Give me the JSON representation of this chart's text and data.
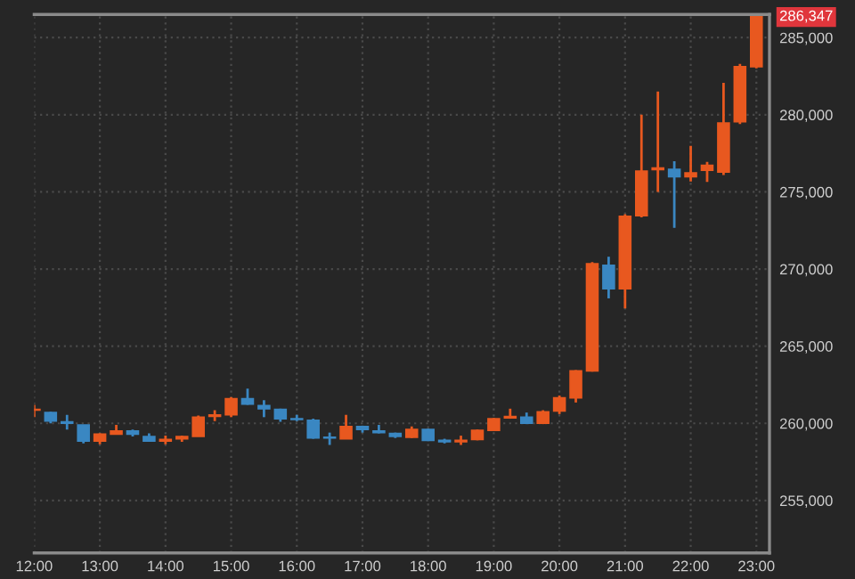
{
  "chart_data": {
    "type": "candlestick",
    "x": [
      12.0,
      12.25,
      12.5,
      12.75,
      13.0,
      13.25,
      13.5,
      13.75,
      14.0,
      14.25,
      14.5,
      14.75,
      15.0,
      15.25,
      15.5,
      15.75,
      16.0,
      16.25,
      16.5,
      16.75,
      17.0,
      17.25,
      17.5,
      17.75,
      18.0,
      18.25,
      18.5,
      18.75,
      19.0,
      19.25,
      19.5,
      19.75,
      20.0,
      20.25,
      20.5,
      20.75,
      21.0,
      21.25,
      21.5,
      21.75,
      22.0,
      22.25,
      22.5,
      22.75,
      23.0
    ],
    "ohlc": [
      [
        260850,
        261200,
        260400,
        260900
      ],
      [
        260700,
        260750,
        260000,
        260150
      ],
      [
        260100,
        260550,
        259600,
        260000
      ],
      [
        259900,
        259900,
        258700,
        258850
      ],
      [
        258850,
        259350,
        258650,
        259300
      ],
      [
        259300,
        259900,
        259300,
        259500
      ],
      [
        259500,
        259600,
        259150,
        259300
      ],
      [
        259150,
        259350,
        258800,
        258850
      ],
      [
        258850,
        259200,
        258650,
        258950
      ],
      [
        259000,
        259200,
        258800,
        259150
      ],
      [
        259150,
        260500,
        259150,
        260400
      ],
      [
        260450,
        260850,
        260150,
        260550
      ],
      [
        260550,
        261700,
        260400,
        261600
      ],
      [
        261600,
        262250,
        261200,
        261250
      ],
      [
        261150,
        261500,
        260400,
        260950
      ],
      [
        260900,
        260950,
        260100,
        260300
      ],
      [
        260300,
        260550,
        260150,
        260250
      ],
      [
        260200,
        260300,
        259000,
        259050
      ],
      [
        259100,
        259400,
        258600,
        259050
      ],
      [
        259000,
        260550,
        259000,
        259800
      ],
      [
        259800,
        259850,
        259400,
        259600
      ],
      [
        259500,
        259900,
        259350,
        259400
      ],
      [
        259350,
        259400,
        259050,
        259150
      ],
      [
        259100,
        259800,
        259050,
        259600
      ],
      [
        259600,
        259650,
        258850,
        258900
      ],
      [
        258900,
        259000,
        258700,
        258800
      ],
      [
        258800,
        259200,
        258600,
        258900
      ],
      [
        258950,
        259600,
        258900,
        259550
      ],
      [
        259550,
        260350,
        259500,
        260300
      ],
      [
        260350,
        260950,
        260300,
        260450
      ],
      [
        260400,
        260700,
        259950,
        260000
      ],
      [
        260000,
        260850,
        259950,
        260750
      ],
      [
        260800,
        261800,
        260600,
        261650
      ],
      [
        261650,
        263450,
        261350,
        263400
      ],
      [
        263400,
        270450,
        263350,
        270350
      ],
      [
        270250,
        270800,
        268100,
        268720
      ],
      [
        268730,
        273550,
        267450,
        273420
      ],
      [
        273450,
        280000,
        273350,
        276350
      ],
      [
        276450,
        281500,
        275000,
        276550
      ],
      [
        276460,
        276990,
        272670,
        275980
      ],
      [
        275980,
        277980,
        275670,
        276240
      ],
      [
        276400,
        276950,
        275650,
        276720
      ],
      [
        276280,
        282070,
        276100,
        279470
      ],
      [
        279550,
        283300,
        279400,
        283120
      ],
      [
        283120,
        286347,
        283000,
        286347
      ]
    ],
    "colors": [
      "#e8581f",
      "#3a87c2",
      "#3a87c2",
      "#3a87c2",
      "#e8581f",
      "#e8581f",
      "#3a87c2",
      "#3a87c2",
      "#e8581f",
      "#e8581f",
      "#e8581f",
      "#e8581f",
      "#e8581f",
      "#3a87c2",
      "#3a87c2",
      "#3a87c2",
      "#3a87c2",
      "#3a87c2",
      "#3a87c2",
      "#e8581f",
      "#3a87c2",
      "#3a87c2",
      "#3a87c2",
      "#e8581f",
      "#3a87c2",
      "#3a87c2",
      "#e8581f",
      "#e8581f",
      "#e8581f",
      "#e8581f",
      "#3a87c2",
      "#e8581f",
      "#e8581f",
      "#e8581f",
      "#e8581f",
      "#3a87c2",
      "#e8581f",
      "#e8581f",
      "#e8581f",
      "#3a87c2",
      "#e8581f",
      "#e8581f",
      "#e8581f",
      "#e8581f",
      "#e8581f"
    ],
    "xlim": [
      12.0,
      23.2
    ],
    "xticks": [
      {
        "value": 12,
        "label": "12:00"
      },
      {
        "value": 13,
        "label": "13:00"
      },
      {
        "value": 14,
        "label": "14:00"
      },
      {
        "value": 15,
        "label": "15:00"
      },
      {
        "value": 16,
        "label": "16:00"
      },
      {
        "value": 17,
        "label": "17:00"
      },
      {
        "value": 18,
        "label": "18:00"
      },
      {
        "value": 19,
        "label": "19:00"
      },
      {
        "value": 20,
        "label": "20:00"
      },
      {
        "value": 21,
        "label": "21:00"
      },
      {
        "value": 22,
        "label": "22:00"
      },
      {
        "value": 23,
        "label": "23:00"
      }
    ],
    "ylim": [
      251600,
      286500
    ],
    "yticks": [
      {
        "value": 255000,
        "label": "255,000"
      },
      {
        "value": 260000,
        "label": "260,000"
      },
      {
        "value": 265000,
        "label": "265,000"
      },
      {
        "value": 270000,
        "label": "270,000"
      },
      {
        "value": 275000,
        "label": "275,000"
      },
      {
        "value": 280000,
        "label": "280,000"
      },
      {
        "value": 285000,
        "label": "285,000"
      }
    ],
    "annotations": [
      "286,347"
    ],
    "grid": true
  }
}
